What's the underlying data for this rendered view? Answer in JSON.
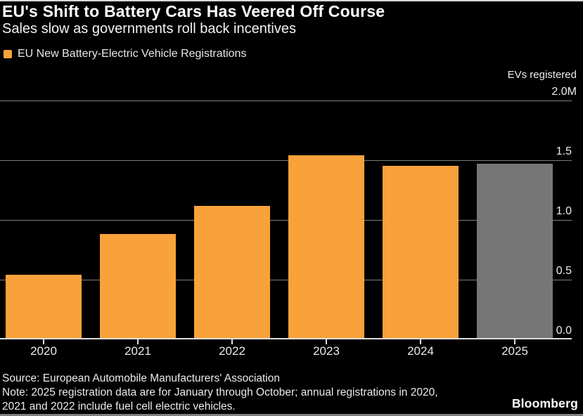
{
  "header": {
    "title": "EU's Shift to Battery Cars Has Veered Off Course",
    "subtitle": "Sales slow as governments roll back incentives"
  },
  "legend": {
    "label": "EU New Battery-Electric Vehicle Registrations",
    "swatch_color": "#f9a23b"
  },
  "axis": {
    "unit_label": "EVs registered"
  },
  "chart_data": {
    "type": "bar",
    "title": "EU's Shift to Battery Cars Has Veered Off Course",
    "subtitle": "Sales slow as governments roll back incentives",
    "series_name": "EU New Battery-Electric Vehicle Registrations",
    "categories": [
      "2020",
      "2021",
      "2022",
      "2023",
      "2024",
      "2025"
    ],
    "values": [
      0.54,
      0.88,
      1.12,
      1.54,
      1.45,
      1.47
    ],
    "unit": "millions of EVs registered",
    "ylabel": "EVs registered",
    "ylim": [
      0,
      2.0
    ],
    "yticks": [
      0.0,
      0.5,
      1.0,
      1.5,
      2.0
    ],
    "ytick_labels": [
      "0.0",
      "0.5",
      "1.0",
      "1.5",
      "2.0M"
    ],
    "bar_colors": [
      "#f9a23b",
      "#f9a23b",
      "#f9a23b",
      "#f9a23b",
      "#f9a23b",
      "#767676"
    ],
    "grid": true,
    "gridline_color": "#7d7d7d",
    "legend_position": "top-left",
    "axis_side": "right"
  },
  "footer": {
    "source": "Source: European Automobile Manufacturers' Association",
    "note_lines": [
      "Note: 2025 registration data are for January through October; annual registrations in 2020,",
      "2021 and 2022 include fuel cell electric vehicles."
    ],
    "brand": "Bloomberg"
  },
  "colors": {
    "background": "#000000",
    "accent_orange": "#f9a23b",
    "partial_year_gray": "#767676",
    "gridline": "#7d7d7d",
    "axis_line": "#dedede",
    "text": "#ececec"
  }
}
